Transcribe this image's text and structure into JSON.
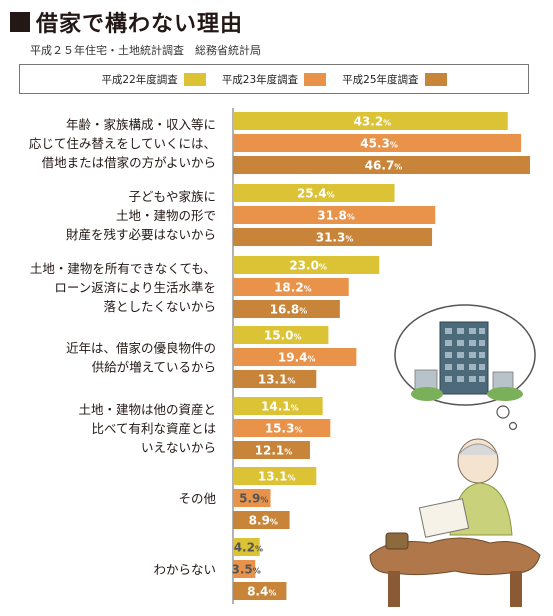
{
  "title": "借家で構わない理由",
  "subtitle": "平成２５年住宅・土地統計調査　総務省統計局",
  "colors": {
    "series1": "#dcc336",
    "series2": "#e9934a",
    "series3": "#c8853a",
    "axis": "#666666",
    "title_square": "#231815"
  },
  "chart_data": {
    "type": "bar",
    "orientation": "horizontal",
    "categories": [
      [
        "年齢・家族構成・収入等に",
        "応じて住み替えをしていくには、",
        "借地または借家の方がよいから"
      ],
      [
        "子どもや家族に",
        "土地・建物の形で",
        "財産を残す必要はないから"
      ],
      [
        "土地・建物を所有できなくても、",
        "ローン返済により生活水準を",
        "落としたくないから"
      ],
      [
        "近年は、借家の優良物件の",
        "供給が増えているから"
      ],
      [
        "土地・建物は他の資産と",
        "比べて有利な資産とは",
        "いえないから"
      ],
      [
        "その他"
      ],
      [
        "わからない"
      ]
    ],
    "series": [
      {
        "name": "平成22年度調査",
        "values": [
          43.2,
          25.4,
          23.0,
          15.0,
          14.1,
          13.1,
          4.2
        ]
      },
      {
        "name": "平成23年度調査",
        "values": [
          45.3,
          31.8,
          18.2,
          19.4,
          15.3,
          5.9,
          3.5
        ]
      },
      {
        "name": "平成25年度調査",
        "values": [
          46.7,
          31.3,
          16.8,
          13.1,
          12.1,
          8.9,
          8.4
        ]
      }
    ],
    "value_labels": [
      [
        "43.2%",
        "25.4%",
        "23.0%",
        "15.0%",
        "14.1%",
        "13.1%",
        "4.2%"
      ],
      [
        "45.3%",
        "31.8%",
        "18.2%",
        "19.4%",
        "15.3%",
        "5.9%",
        "3.5%"
      ],
      [
        "46.7%",
        "31.3%",
        "16.8%",
        "13.1%",
        "12.1%",
        "8.9%",
        "8.4%"
      ]
    ],
    "unit": "%",
    "xlim": [
      0,
      47
    ],
    "legend_position": "top",
    "grid": false
  }
}
